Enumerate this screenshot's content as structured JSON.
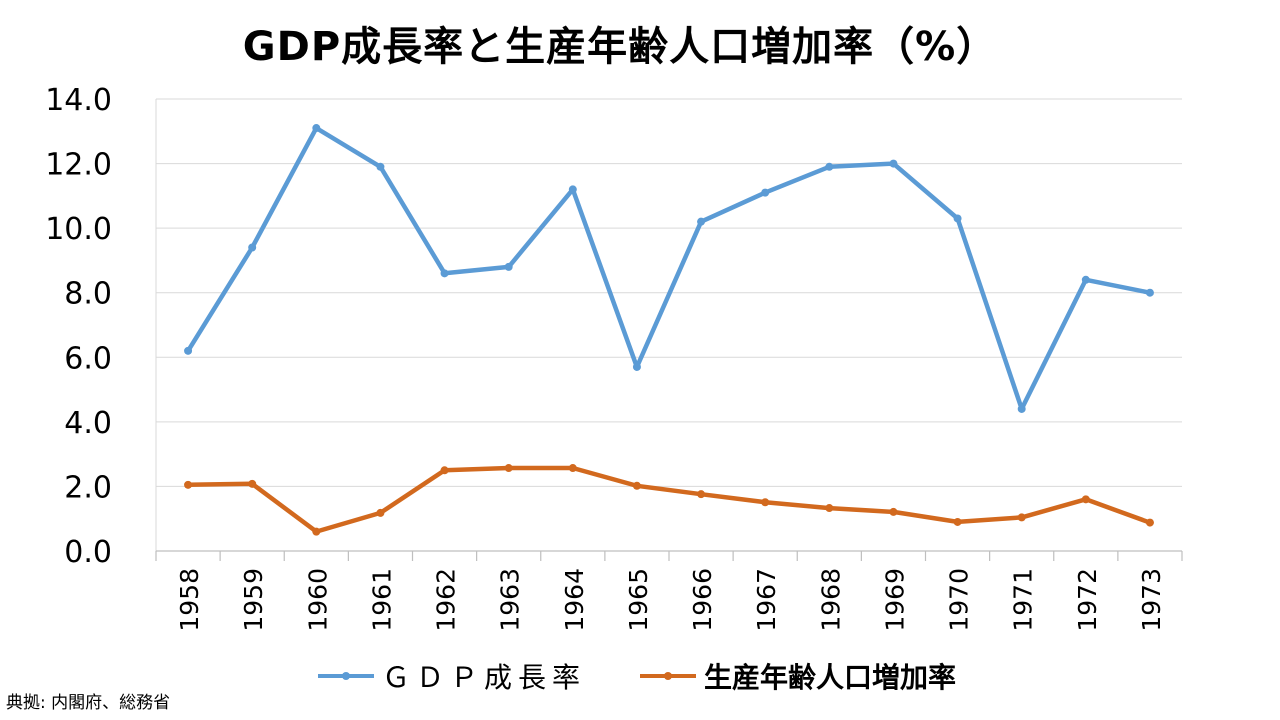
{
  "chart_data": {
    "type": "line",
    "title": "GDP成長率と生産年齢人口増加率（%）",
    "xlabel": "",
    "ylabel": "",
    "categories": [
      "1958",
      "1959",
      "1960",
      "1961",
      "1962",
      "1963",
      "1964",
      "1965",
      "1966",
      "1967",
      "1968",
      "1969",
      "1970",
      "1971",
      "1972",
      "1973"
    ],
    "ylim": [
      0,
      14
    ],
    "yticks": [
      "0.0",
      "2.0",
      "4.0",
      "6.0",
      "8.0",
      "10.0",
      "12.0",
      "14.0"
    ],
    "grid": true,
    "legend_position": "bottom",
    "series": [
      {
        "name": "ＧＤＰ成長率",
        "color": "#5B9BD5",
        "values": [
          6.2,
          9.4,
          13.1,
          11.9,
          8.6,
          8.8,
          11.2,
          5.7,
          10.2,
          11.1,
          11.9,
          12.0,
          10.3,
          4.4,
          8.4,
          8.0
        ]
      },
      {
        "name": "生産年齢人口増加率",
        "color": "#D2691E",
        "values": [
          2.05,
          2.08,
          0.6,
          1.18,
          2.5,
          2.57,
          2.57,
          2.02,
          1.76,
          1.51,
          1.33,
          1.21,
          0.9,
          1.04,
          1.6,
          0.88
        ]
      }
    ]
  },
  "source": "典拠: 内閣府、総務省"
}
